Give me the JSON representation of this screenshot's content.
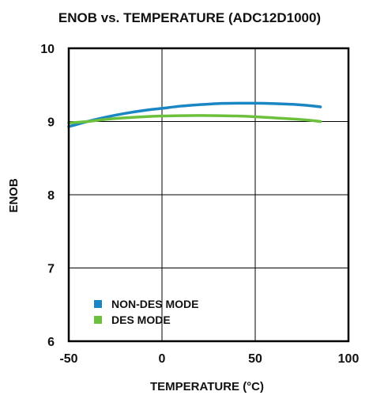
{
  "chart_data": {
    "type": "line",
    "title": "ENOB vs. TEMPERATURE (ADC12D1000)",
    "xlabel": "TEMPERATURE (°C)",
    "ylabel": "ENOB",
    "xlim": [
      -50,
      100
    ],
    "ylim": [
      6,
      10
    ],
    "x_ticks": [
      "-50",
      "0",
      "50",
      "100"
    ],
    "y_ticks": [
      "6",
      "7",
      "8",
      "9",
      "10"
    ],
    "x_tick_values": [
      -50,
      0,
      50,
      100
    ],
    "y_tick_values": [
      6,
      7,
      8,
      9,
      10
    ],
    "grid": true,
    "legend_position": "bottom-left",
    "series": [
      {
        "name": "NON-DES MODE",
        "color": "#1a86c4",
        "x": [
          -50,
          -40,
          -30,
          -20,
          -10,
          0,
          10,
          20,
          30,
          40,
          50,
          60,
          70,
          80,
          85
        ],
        "y": [
          8.93,
          9.0,
          9.06,
          9.11,
          9.15,
          9.18,
          9.21,
          9.23,
          9.245,
          9.25,
          9.25,
          9.245,
          9.235,
          9.215,
          9.2
        ]
      },
      {
        "name": "DES MODE",
        "color": "#6cc13c",
        "x": [
          -50,
          -40,
          -30,
          -20,
          -10,
          0,
          10,
          20,
          30,
          40,
          50,
          60,
          70,
          80,
          85
        ],
        "y": [
          8.98,
          9.0,
          9.03,
          9.05,
          9.065,
          9.075,
          9.08,
          9.082,
          9.08,
          9.075,
          9.065,
          9.05,
          9.035,
          9.015,
          9.0
        ]
      }
    ]
  }
}
